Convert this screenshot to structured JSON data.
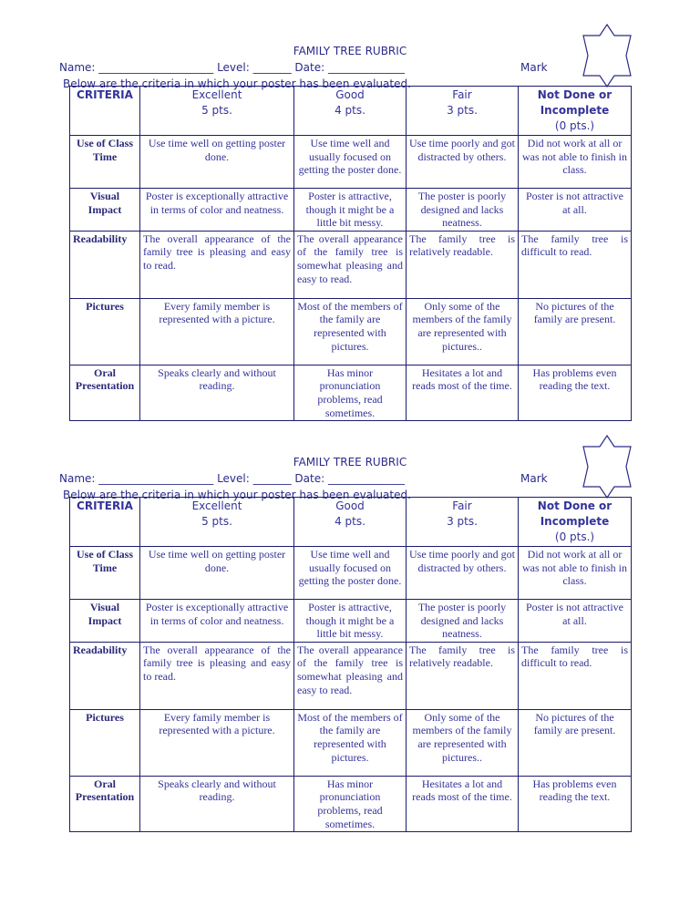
{
  "rubric": {
    "title": "FAMILY TREE RUBRIC",
    "name_line": "Name: _____________________ Level: _______ Date: ______________",
    "mark_label": "Mark",
    "instructions": "Below are the criteria in which your poster has been evaluated.",
    "headers": [
      {
        "label": "CRITERIA",
        "sub": ""
      },
      {
        "label": "Excellent",
        "sub": "5 pts."
      },
      {
        "label": "Good",
        "sub": "4 pts."
      },
      {
        "label": "Fair",
        "sub": "3 pts."
      },
      {
        "label": "Not Done or Incomplete",
        "sub": "(0 pts.)"
      }
    ],
    "rows": [
      {
        "criterion": "Use of Class Time",
        "cells": [
          "Use time well on getting poster done.",
          "Use time well and usually focused on getting the poster done.",
          "Use time poorly and got distracted by others.",
          "Did not work at all or was not able to finish in class."
        ]
      },
      {
        "criterion": "Visual Impact",
        "cells": [
          "Poster is exceptionally attractive in terms of color and neatness.",
          "Poster is attractive, though it might be a little bit messy.",
          "The poster is poorly designed and lacks neatness.",
          "Poster  is not attractive at all."
        ]
      },
      {
        "criterion": "Readability",
        "cells": [
          "The overall appearance of the family tree is pleasing and easy to read.",
          "The overall appearance of the family tree is somewhat pleasing and easy to read.",
          "The family tree is relatively readable.",
          "The family tree is difficult to read."
        ]
      },
      {
        "criterion": "Pictures",
        "cells": [
          "Every family member is represented with a picture.",
          "Most of the members of the family are represented with pictures.",
          "Only some of the members of the family are represented with pictures..",
          "No pictures of the family are present."
        ]
      },
      {
        "criterion": "Oral Presentation",
        "cells": [
          "Speaks clearly and without reading.",
          "Has minor pronunciation problems, read sometimes.",
          "Hesitates a lot and reads most of the time.",
          "Has problems even reading the text."
        ]
      }
    ],
    "copies": 2,
    "star_icon": "eight-point-star-icon",
    "text_color": "#2a2a8a",
    "border_color": "#1c1c6e"
  }
}
